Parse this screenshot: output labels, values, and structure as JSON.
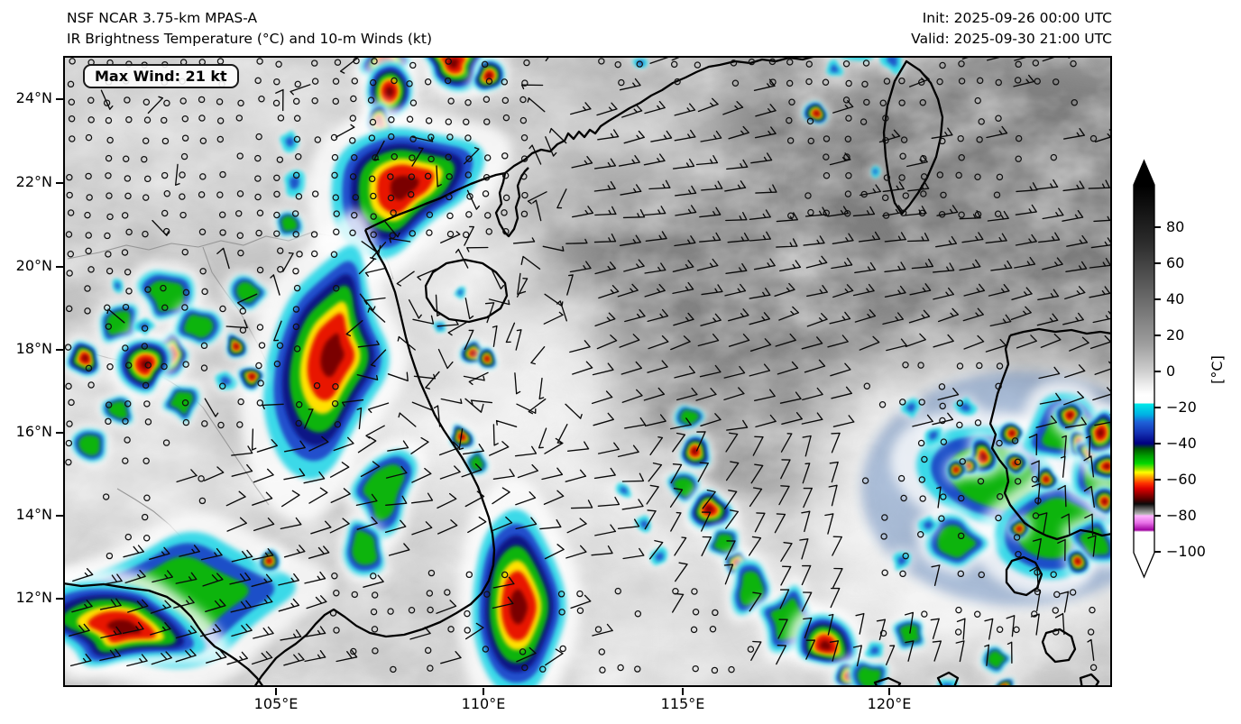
{
  "header": {
    "model_line": "NSF NCAR 3.75-km MPAS-A",
    "field_line": "IR Brightness Temperature (°C) and 10-m Winds (kt)",
    "init_line": "Init: 2025-09-26 00:00 UTC",
    "valid_line": "Valid: 2025-09-30 21:00 UTC"
  },
  "map": {
    "max_wind_label": "Max Wind: 21 kt"
  },
  "chart_data": {
    "type": "heatmap",
    "title": "NSF NCAR 3.75-km MPAS-A",
    "subtitle": "IR Brightness Temperature (°C) and 10-m Winds (kt)",
    "init_time": "2025-09-26 00:00 UTC",
    "valid_time": "2025-09-30 21:00 UTC",
    "max_wind_kt": 21,
    "wind_units": "kt",
    "field_units": "°C",
    "x_axis": {
      "tick_labels": [
        "105°E",
        "110°E",
        "115°E",
        "120°E"
      ],
      "tick_values_deg_e": [
        105,
        110,
        115,
        120
      ],
      "approx_range_deg_e": [
        99.8,
        125.4
      ]
    },
    "y_axis": {
      "tick_labels": [
        "24°N",
        "22°N",
        "20°N",
        "18°N",
        "16°N",
        "14°N",
        "12°N"
      ],
      "tick_values_deg_n": [
        24,
        22,
        20,
        18,
        16,
        14,
        12
      ],
      "approx_range_deg_n": [
        10.9,
        25.1
      ]
    },
    "colorbar": {
      "unit_label": "[°C]",
      "tick_labels": [
        "80",
        "60",
        "40",
        "20",
        "0",
        "−20",
        "−40",
        "−60",
        "−80",
        "−100"
      ],
      "tick_values": [
        80,
        60,
        40,
        20,
        0,
        -20,
        -40,
        -60,
        -80,
        -100
      ],
      "range": [
        100,
        -100
      ],
      "extend": "both",
      "stops": [
        {
          "v": 103,
          "c": "#000000"
        },
        {
          "v": 70,
          "c": "#2e2e2e"
        },
        {
          "v": 40,
          "c": "#6a6a6a"
        },
        {
          "v": 15,
          "c": "#9e9e9e"
        },
        {
          "v": 0,
          "c": "#cfcfcf"
        },
        {
          "v": -8,
          "c": "#efefef"
        },
        {
          "v": -13,
          "c": "#ffffff"
        },
        {
          "v": -17.5,
          "c": "#fdfdfd"
        },
        {
          "v": -18,
          "c": "#00e8e8"
        },
        {
          "v": -24,
          "c": "#00b0e4"
        },
        {
          "v": -28,
          "c": "#1e62d8"
        },
        {
          "v": -34,
          "c": "#1432b4"
        },
        {
          "v": -40,
          "c": "#000080"
        },
        {
          "v": -43,
          "c": "#005a00"
        },
        {
          "v": -47,
          "c": "#00a000"
        },
        {
          "v": -51,
          "c": "#00d800"
        },
        {
          "v": -54,
          "c": "#96e400"
        },
        {
          "v": -56,
          "c": "#ffff00"
        },
        {
          "v": -59,
          "c": "#ff9600"
        },
        {
          "v": -62,
          "c": "#ff3200"
        },
        {
          "v": -65,
          "c": "#dc0000"
        },
        {
          "v": -68,
          "c": "#960000"
        },
        {
          "v": -71,
          "c": "#500000"
        },
        {
          "v": -73.5,
          "c": "#0a0a0a"
        },
        {
          "v": -76,
          "c": "#5a5a5a"
        },
        {
          "v": -79,
          "c": "#b4b4b4"
        },
        {
          "v": -80,
          "c": "#ffb4ff"
        },
        {
          "v": -84,
          "c": "#e66ee6"
        },
        {
          "v": -88,
          "c": "#a000a0"
        },
        {
          "v": -89,
          "c": "#ffffff"
        },
        {
          "v": -100.5,
          "c": "#ffffff"
        }
      ]
    }
  }
}
